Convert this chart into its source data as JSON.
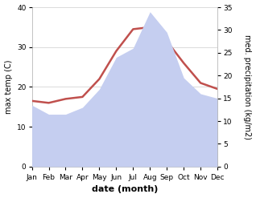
{
  "months": [
    "Jan",
    "Feb",
    "Mar",
    "Apr",
    "May",
    "Jun",
    "Jul",
    "Aug",
    "Sep",
    "Oct",
    "Nov",
    "Dec"
  ],
  "month_indices": [
    0,
    1,
    2,
    3,
    4,
    5,
    6,
    7,
    8,
    9,
    10,
    11
  ],
  "max_temp": [
    16.5,
    16.0,
    17.0,
    17.5,
    22.0,
    29.0,
    34.5,
    35.0,
    31.5,
    26.0,
    21.0,
    19.5
  ],
  "precipitation": [
    13.5,
    11.5,
    11.5,
    13.0,
    17.0,
    24.0,
    26.0,
    34.0,
    29.5,
    19.5,
    16.0,
    15.0
  ],
  "temp_color": "#c0504d",
  "precip_fill_color": "#c5cef0",
  "left_ylabel": "max temp (C)",
  "right_ylabel": "med. precipitation (kg/m2)",
  "xlabel": "date (month)",
  "left_ylim": [
    0,
    40
  ],
  "right_ylim": [
    0,
    35
  ],
  "left_yticks": [
    0,
    10,
    20,
    30,
    40
  ],
  "right_yticks": [
    0,
    5,
    10,
    15,
    20,
    25,
    30,
    35
  ],
  "background_color": "#ffffff",
  "line_width": 1.8,
  "tick_fontsize": 6.5,
  "label_fontsize": 7.0,
  "xlabel_fontsize": 8.0
}
